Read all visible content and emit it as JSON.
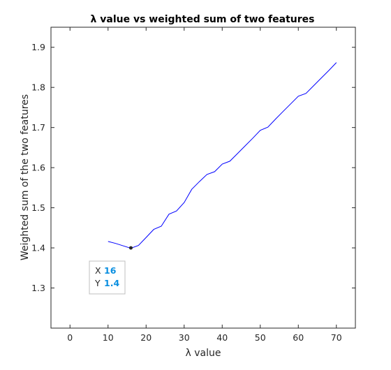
{
  "chart_data": {
    "type": "line",
    "title": "λ value vs weighted sum of two features",
    "xlabel": "λ value",
    "ylabel": "Weighted sum of the two features",
    "xlim": [
      -5,
      75
    ],
    "ylim": [
      1.2,
      1.95
    ],
    "x_ticks": [
      "0",
      "10",
      "20",
      "30",
      "40",
      "50",
      "60",
      "70"
    ],
    "y_ticks": [
      "1.3",
      "1.4",
      "1.5",
      "1.6",
      "1.7",
      "1.8",
      "1.9"
    ],
    "grid": false,
    "line_color": "#0000ff",
    "series": [
      {
        "x": [
          10,
          12,
          14,
          16,
          18,
          20,
          22,
          24,
          26,
          28,
          30,
          32,
          34,
          36,
          38,
          40,
          42,
          44,
          46,
          48,
          50,
          52,
          54,
          56,
          58,
          60,
          62,
          64,
          66,
          68,
          70
        ],
        "y": [
          1.416,
          1.411,
          1.405,
          1.399,
          1.406,
          1.426,
          1.446,
          1.454,
          1.484,
          1.492,
          1.513,
          1.546,
          1.565,
          1.583,
          1.59,
          1.609,
          1.616,
          1.635,
          1.654,
          1.673,
          1.693,
          1.701,
          1.721,
          1.74,
          1.759,
          1.778,
          1.785,
          1.804,
          1.823,
          1.842,
          1.862
        ]
      }
    ],
    "datatip": {
      "x_key": "X",
      "x_value": "16",
      "y_key": "Y",
      "y_value": "1.4",
      "point": [
        16,
        1.4
      ]
    }
  }
}
